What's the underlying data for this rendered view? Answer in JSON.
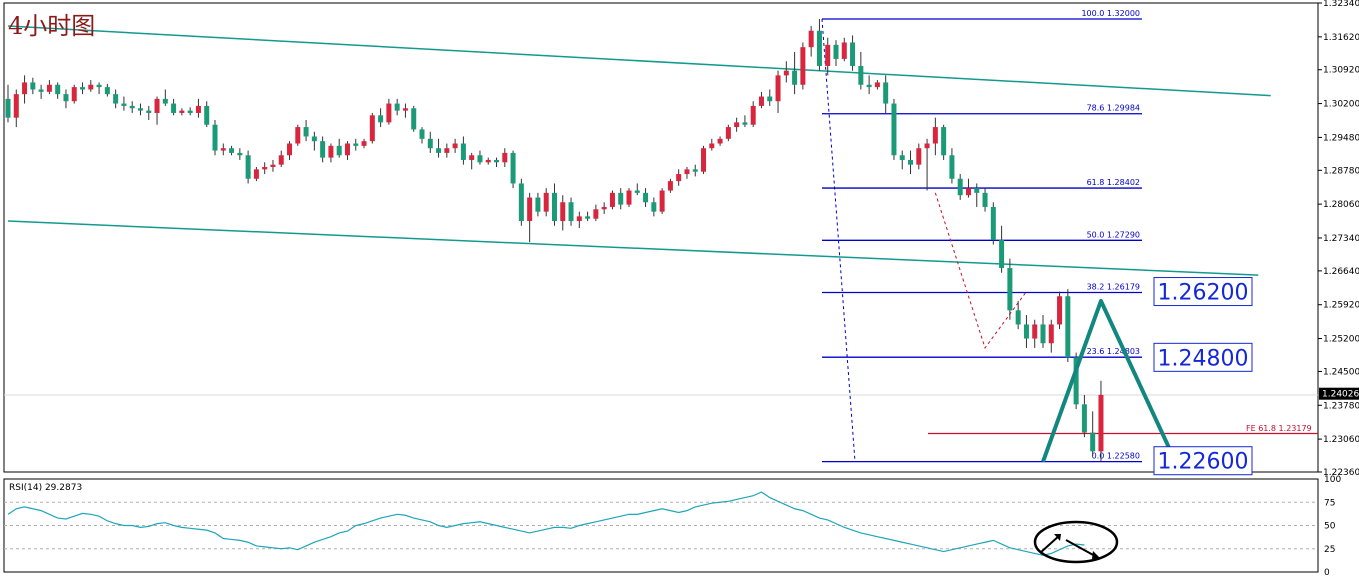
{
  "title": "4小时图",
  "chart_data": {
    "type": "candlestick",
    "price_axis": {
      "ylim": [
        1.2236,
        1.3234
      ],
      "ticks": [
        "1.32340",
        "1.31620",
        "1.30920",
        "1.30200",
        "1.29480",
        "1.28780",
        "1.28060",
        "1.27340",
        "1.26640",
        "1.25920",
        "1.25200",
        "1.24500",
        "1.23780",
        "1.23060",
        "1.22360"
      ],
      "current_price": "1.24026"
    },
    "candles_ohlc": [
      [
        1.303,
        1.306,
        1.298,
        1.299
      ],
      [
        1.299,
        1.305,
        1.297,
        1.304
      ],
      [
        1.304,
        1.308,
        1.302,
        1.3065
      ],
      [
        1.3065,
        1.3075,
        1.304,
        1.305
      ],
      [
        1.305,
        1.306,
        1.303,
        1.3045
      ],
      [
        1.3045,
        1.307,
        1.304,
        1.306
      ],
      [
        1.306,
        1.3065,
        1.303,
        1.304
      ],
      [
        1.304,
        1.305,
        1.301,
        1.3025
      ],
      [
        1.3025,
        1.306,
        1.302,
        1.3055
      ],
      [
        1.3055,
        1.3065,
        1.304,
        1.305
      ],
      [
        1.305,
        1.307,
        1.3045,
        1.306
      ],
      [
        1.306,
        1.3065,
        1.304,
        1.3055
      ],
      [
        1.3055,
        1.3062,
        1.3035,
        1.304
      ],
      [
        1.304,
        1.305,
        1.301,
        1.302
      ],
      [
        1.302,
        1.3035,
        1.3005,
        1.3015
      ],
      [
        1.3015,
        1.3025,
        1.3,
        1.301
      ],
      [
        1.301,
        1.302,
        1.2995,
        1.3005
      ],
      [
        1.3005,
        1.3015,
        1.2985,
        1.3
      ],
      [
        1.3,
        1.3035,
        1.2975,
        1.303
      ],
      [
        1.303,
        1.305,
        1.3015,
        1.302
      ],
      [
        1.302,
        1.303,
        1.2995,
        1.3
      ],
      [
        1.3,
        1.301,
        1.2995,
        1.3005
      ],
      [
        1.3005,
        1.3012,
        1.2995,
        1.3
      ],
      [
        1.3,
        1.303,
        1.299,
        1.3015
      ],
      [
        1.3015,
        1.3025,
        1.297,
        1.2975
      ],
      [
        1.2975,
        1.2985,
        1.291,
        1.292
      ],
      [
        1.292,
        1.2935,
        1.291,
        1.2925
      ],
      [
        1.2925,
        1.293,
        1.291,
        1.2915
      ],
      [
        1.2915,
        1.2925,
        1.29,
        1.291
      ],
      [
        1.291,
        1.292,
        1.285,
        1.286
      ],
      [
        1.286,
        1.2885,
        1.2855,
        1.288
      ],
      [
        1.288,
        1.2895,
        1.287,
        1.2885
      ],
      [
        1.2885,
        1.29,
        1.2875,
        1.289
      ],
      [
        1.289,
        1.292,
        1.2885,
        1.291
      ],
      [
        1.291,
        1.294,
        1.29,
        1.2935
      ],
      [
        1.2935,
        1.2975,
        1.293,
        1.297
      ],
      [
        1.297,
        1.2985,
        1.294,
        1.295
      ],
      [
        1.295,
        1.296,
        1.292,
        1.294
      ],
      [
        1.294,
        1.295,
        1.2895,
        1.2905
      ],
      [
        1.2905,
        1.2935,
        1.2895,
        1.293
      ],
      [
        1.293,
        1.2945,
        1.2905,
        1.291
      ],
      [
        1.291,
        1.294,
        1.29,
        1.2935
      ],
      [
        1.2935,
        1.2945,
        1.292,
        1.293
      ],
      [
        1.293,
        1.2945,
        1.2925,
        1.294
      ],
      [
        1.294,
        1.3,
        1.2935,
        1.2995
      ],
      [
        1.2995,
        1.301,
        1.297,
        1.298
      ],
      [
        1.298,
        1.303,
        1.2975,
        1.302
      ],
      [
        1.302,
        1.303,
        1.2995,
        1.3005
      ],
      [
        1.3005,
        1.302,
        1.299,
        1.301
      ],
      [
        1.301,
        1.3015,
        1.296,
        1.2965
      ],
      [
        1.2965,
        1.297,
        1.2935,
        1.2945
      ],
      [
        1.2945,
        1.296,
        1.2915,
        1.2925
      ],
      [
        1.2925,
        1.2945,
        1.2905,
        1.2915
      ],
      [
        1.2915,
        1.2935,
        1.2905,
        1.2925
      ],
      [
        1.2925,
        1.2945,
        1.2915,
        1.2935
      ],
      [
        1.2935,
        1.295,
        1.289,
        1.29
      ],
      [
        1.29,
        1.2915,
        1.288,
        1.291
      ],
      [
        1.291,
        1.292,
        1.289,
        1.2895
      ],
      [
        1.2895,
        1.2905,
        1.289,
        1.29
      ],
      [
        1.29,
        1.2905,
        1.2885,
        1.2895
      ],
      [
        1.2895,
        1.2925,
        1.2885,
        1.2915
      ],
      [
        1.2915,
        1.292,
        1.284,
        1.285
      ],
      [
        1.285,
        1.286,
        1.276,
        1.277
      ],
      [
        1.277,
        1.283,
        1.2725,
        1.282
      ],
      [
        1.282,
        1.283,
        1.278,
        1.279
      ],
      [
        1.279,
        1.284,
        1.278,
        1.283
      ],
      [
        1.283,
        1.285,
        1.276,
        1.277
      ],
      [
        1.277,
        1.2825,
        1.275,
        1.281
      ],
      [
        1.281,
        1.282,
        1.276,
        1.277
      ],
      [
        1.277,
        1.279,
        1.2755,
        1.278
      ],
      [
        1.278,
        1.279,
        1.277,
        1.2775
      ],
      [
        1.2775,
        1.2805,
        1.277,
        1.2795
      ],
      [
        1.2795,
        1.281,
        1.2785,
        1.28
      ],
      [
        1.28,
        1.2835,
        1.2795,
        1.283
      ],
      [
        1.283,
        1.284,
        1.2795,
        1.2805
      ],
      [
        1.2805,
        1.284,
        1.28,
        1.2835
      ],
      [
        1.2835,
        1.285,
        1.2825,
        1.283
      ],
      [
        1.283,
        1.284,
        1.28,
        1.281
      ],
      [
        1.281,
        1.282,
        1.278,
        1.279
      ],
      [
        1.279,
        1.284,
        1.2785,
        1.2835
      ],
      [
        1.2835,
        1.286,
        1.283,
        1.2855
      ],
      [
        1.2855,
        1.288,
        1.2845,
        1.287
      ],
      [
        1.287,
        1.2885,
        1.286,
        1.288
      ],
      [
        1.288,
        1.289,
        1.2865,
        1.2875
      ],
      [
        1.2875,
        1.293,
        1.287,
        1.2925
      ],
      [
        1.2925,
        1.2945,
        1.292,
        1.2935
      ],
      [
        1.2935,
        1.295,
        1.293,
        1.2945
      ],
      [
        1.2945,
        1.2975,
        1.294,
        1.297
      ],
      [
        1.297,
        1.299,
        1.296,
        1.298
      ],
      [
        1.298,
        1.2995,
        1.297,
        1.2975
      ],
      [
        1.2975,
        1.3025,
        1.297,
        1.3015
      ],
      [
        1.3015,
        1.3045,
        1.301,
        1.3035
      ],
      [
        1.3035,
        1.305,
        1.3015,
        1.3025
      ],
      [
        1.3025,
        1.309,
        1.3,
        1.308
      ],
      [
        1.308,
        1.311,
        1.3065,
        1.309
      ],
      [
        1.309,
        1.313,
        1.304,
        1.306
      ],
      [
        1.306,
        1.315,
        1.305,
        1.314
      ],
      [
        1.314,
        1.3185,
        1.312,
        1.3175
      ],
      [
        1.3175,
        1.32,
        1.309,
        1.31
      ],
      [
        1.31,
        1.316,
        1.308,
        1.3145
      ],
      [
        1.3145,
        1.3155,
        1.31,
        1.3115
      ],
      [
        1.3115,
        1.316,
        1.311,
        1.315
      ],
      [
        1.315,
        1.3165,
        1.309,
        1.31
      ],
      [
        1.31,
        1.313,
        1.305,
        1.306
      ],
      [
        1.306,
        1.308,
        1.304,
        1.3055
      ],
      [
        1.3055,
        1.307,
        1.305,
        1.3065
      ],
      [
        1.3065,
        1.308,
        1.3,
        1.302
      ],
      [
        1.302,
        1.303,
        1.29,
        1.291
      ],
      [
        1.291,
        1.292,
        1.288,
        1.29
      ],
      [
        1.29,
        1.292,
        1.287,
        1.289
      ],
      [
        1.289,
        1.2935,
        1.288,
        1.2925
      ],
      [
        1.2925,
        1.2945,
        1.2835,
        1.2935
      ],
      [
        1.2935,
        1.299,
        1.291,
        1.297
      ],
      [
        1.297,
        1.2975,
        1.29,
        1.291
      ],
      [
        1.291,
        1.2925,
        1.285,
        1.286
      ],
      [
        1.286,
        1.287,
        1.2815,
        1.2825
      ],
      [
        1.2825,
        1.286,
        1.282,
        1.284
      ],
      [
        1.284,
        1.285,
        1.28,
        1.283
      ],
      [
        1.283,
        1.284,
        1.279,
        1.28
      ],
      [
        1.28,
        1.281,
        1.272,
        1.273
      ],
      [
        1.273,
        1.276,
        1.266,
        1.267
      ],
      [
        1.267,
        1.269,
        1.256,
        1.258
      ],
      [
        1.258,
        1.26,
        1.254,
        1.255
      ],
      [
        1.255,
        1.257,
        1.25,
        1.252
      ],
      [
        1.252,
        1.256,
        1.25,
        1.255
      ],
      [
        1.255,
        1.257,
        1.25,
        1.251
      ],
      [
        1.251,
        1.256,
        1.249,
        1.255
      ],
      [
        1.255,
        1.262,
        1.254,
        1.261
      ],
      [
        1.261,
        1.2625,
        1.247,
        1.248
      ],
      [
        1.248,
        1.249,
        1.237,
        1.238
      ],
      [
        1.238,
        1.24,
        1.231,
        1.232
      ],
      [
        1.232,
        1.2365,
        1.227,
        1.228
      ],
      [
        1.228,
        1.243,
        1.2258,
        1.24
      ]
    ],
    "channel": {
      "upper": {
        "from": [
          0,
          1.3185
        ],
        "to": [
          152.5,
          1.3037
        ]
      },
      "lower": {
        "from": [
          0,
          1.277
        ],
        "to": [
          151,
          1.2655
        ]
      }
    },
    "fibonacci": [
      {
        "label": "100.0 1.32000",
        "price": 1.32
      },
      {
        "label": "78.6 1.29984",
        "price": 1.29984
      },
      {
        "label": "61.8 1.28402",
        "price": 1.28402
      },
      {
        "label": "50.0 1.27290",
        "price": 1.2729
      },
      {
        "label": "38.2 1.26179",
        "price": 1.26179
      },
      {
        "label": "23.6 1.24803",
        "price": 1.24803
      },
      {
        "label": "0.0 1.22580",
        "price": 1.2258
      }
    ],
    "fib_expansion": {
      "label": "FE 61.8 1.23179",
      "price": 1.23179
    },
    "targets": [
      "1.26200",
      "1.24800",
      "1.22600"
    ],
    "forecast_path": [
      [
        125,
        1.2258
      ],
      [
        132,
        1.26
      ],
      [
        141,
        1.2258
      ]
    ],
    "rsi": {
      "label": "RSI(14) 29.2873",
      "period": 14,
      "last": 29.2873,
      "ylim": [
        0,
        100
      ],
      "levels": [
        75,
        50,
        25
      ],
      "ticks": [
        "100",
        "75",
        "50",
        "25",
        "0"
      ],
      "values": [
        62,
        68,
        70,
        68,
        66,
        62,
        58,
        57,
        60,
        63,
        62,
        60,
        55,
        52,
        50,
        50,
        48,
        49,
        52,
        53,
        50,
        48,
        47,
        46,
        45,
        42,
        36,
        35,
        34,
        32,
        28,
        27,
        26,
        25,
        26,
        24,
        28,
        32,
        35,
        38,
        42,
        44,
        50,
        52,
        55,
        58,
        60,
        62,
        61,
        58,
        56,
        54,
        50,
        48,
        50,
        52,
        53,
        54,
        52,
        50,
        48,
        46,
        44,
        42,
        44,
        46,
        48,
        48,
        47,
        50,
        52,
        54,
        56,
        58,
        60,
        62,
        62,
        64,
        66,
        68,
        66,
        64,
        66,
        70,
        72,
        74,
        75,
        76,
        78,
        80,
        82,
        86,
        80,
        76,
        72,
        68,
        66,
        62,
        58,
        56,
        52,
        48,
        45,
        42,
        40,
        38,
        36,
        34,
        32,
        30,
        28,
        26,
        24,
        22,
        24,
        26,
        28,
        30,
        32,
        34,
        30,
        26,
        24,
        22,
        20,
        18,
        20,
        24,
        28,
        30,
        29
      ]
    }
  }
}
